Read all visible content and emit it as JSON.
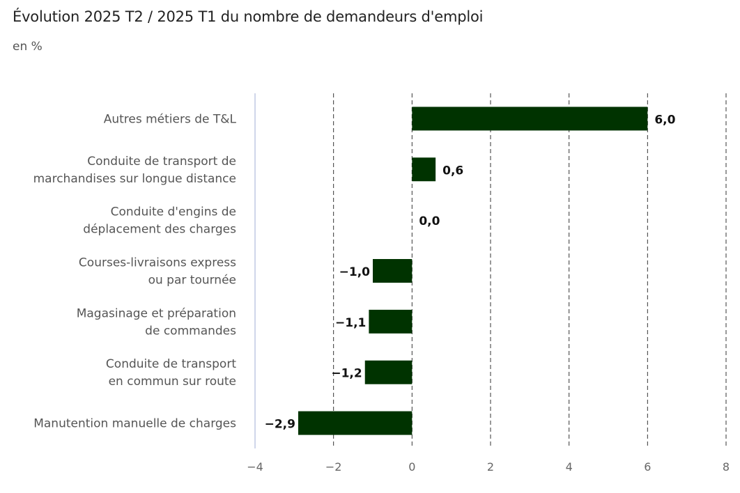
{
  "chart_data": {
    "type": "bar",
    "orientation": "horizontal",
    "title": "Évolution 2025 T2 / 2025 T1 du nombre de demandeurs d'emploi",
    "subtitle": "en %",
    "xlabel": "",
    "ylabel": "",
    "xlim": [
      -4,
      8
    ],
    "ticks": [
      -4,
      -2,
      0,
      2,
      4,
      6,
      8
    ],
    "tick_labels": [
      "−4",
      "−2",
      "0",
      "2",
      "4",
      "6",
      "8"
    ],
    "grid": "vertical dashed",
    "bar_color": "#003300",
    "categories": [
      [
        "Autres métiers de T&L"
      ],
      [
        "Conduite de transport de",
        "marchandises sur longue distance"
      ],
      [
        "Conduite d'engins de",
        "déplacement des charges"
      ],
      [
        "Courses-livraisons express",
        "ou par tournée"
      ],
      [
        "Magasinage et préparation",
        "de commandes"
      ],
      [
        "Conduite de transport",
        "en commun sur route"
      ],
      [
        "Manutention manuelle de charges"
      ]
    ],
    "values": [
      6.0,
      0.6,
      0.0,
      -1.0,
      -1.1,
      -1.2,
      -2.9
    ],
    "value_labels": [
      "6,0",
      "0,6",
      "0,0",
      "−1,0",
      "−1,1",
      "−1,2",
      "−2,9"
    ]
  }
}
